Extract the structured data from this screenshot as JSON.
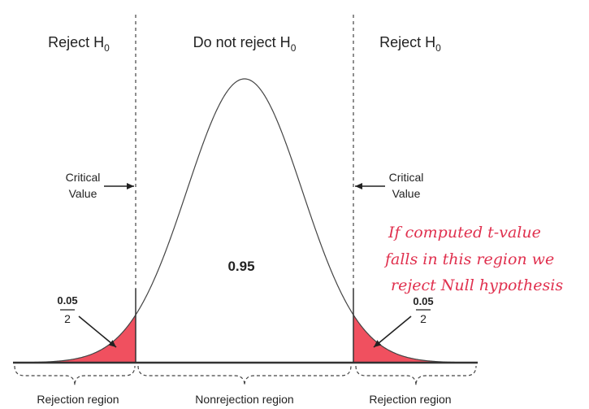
{
  "header_labels": {
    "left": "Reject H",
    "center": "Do not reject H",
    "right": "Reject H",
    "subscript": "0"
  },
  "critical_value": {
    "line1": "Critical",
    "line2": "Value"
  },
  "center_probability": "0.95",
  "tail_fraction": {
    "numerator": "0.05",
    "denominator": "2"
  },
  "annotation": {
    "line1": "If computed t-value",
    "line2": "falls in this region we",
    "line3": "reject Null hypothesis"
  },
  "region_labels": {
    "left": "Rejection region",
    "center": "Nonrejection region",
    "right": "Rejection region"
  },
  "colors": {
    "tail_fill": "#f0505f",
    "annotation": "#e0304e",
    "line": "#333333"
  }
}
